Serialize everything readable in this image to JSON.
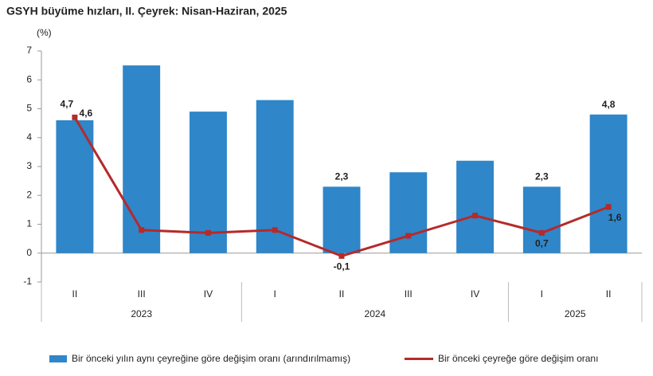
{
  "chart_data": {
    "type": "bar-line",
    "title": "GSYH büyüme hızları, II. Çeyrek: Nisan-Haziran, 2025",
    "y_label": "(%)",
    "categories": [
      "II",
      "III",
      "IV",
      "I",
      "II",
      "III",
      "IV",
      "I",
      "II"
    ],
    "groups": [
      {
        "label": "2023",
        "count": 3
      },
      {
        "label": "2024",
        "count": 4
      },
      {
        "label": "2025",
        "count": 2
      }
    ],
    "series": [
      {
        "name": "Bir önceki yılın aynı çeyreğine göre değişim oranı (arındırılmamış)",
        "type": "bar",
        "color": "#2f86c9",
        "values": [
          4.6,
          6.5,
          4.9,
          5.3,
          2.3,
          2.8,
          3.2,
          2.3,
          4.8
        ],
        "value_labels": [
          "4,6",
          null,
          null,
          null,
          "2,3",
          null,
          null,
          "2,3",
          "4,8"
        ]
      },
      {
        "name": "Bir önceki çeyreğe göre değişim oranı",
        "type": "line",
        "color": "#b52a2a",
        "values": [
          4.7,
          0.8,
          0.7,
          0.8,
          -0.1,
          0.6,
          1.3,
          0.7,
          1.6
        ],
        "value_labels": [
          "4,7",
          null,
          null,
          null,
          "-0,1",
          null,
          null,
          "0,7",
          "1,6"
        ]
      }
    ],
    "ylim": [
      -1,
      7
    ],
    "yticks": [
      -1,
      0,
      1,
      2,
      3,
      4,
      5,
      6,
      7
    ],
    "grid": false
  }
}
